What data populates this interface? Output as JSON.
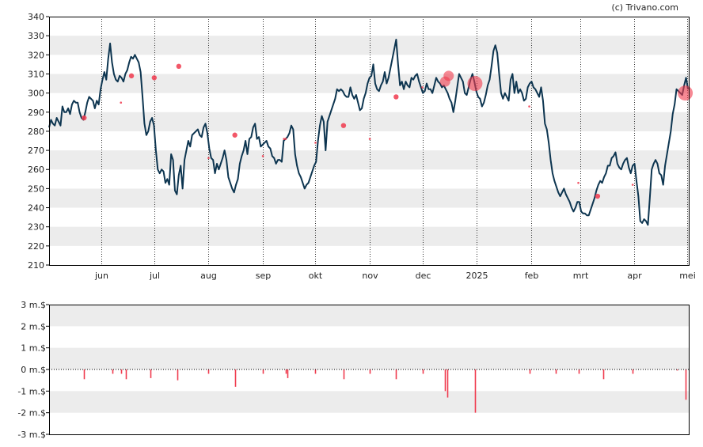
{
  "copyright": "(c) Trivano.com",
  "colors": {
    "band": "#ececec",
    "price_line": "#0d3550",
    "marker": "#f03a4d",
    "axis": "#000000",
    "grid_dots": "#333333"
  },
  "chart_data": [
    {
      "type": "line",
      "title": "",
      "xlabel": "",
      "ylabel": "",
      "ylim": [
        210,
        340
      ],
      "yticks": [
        "210",
        "220",
        "230",
        "240",
        "250",
        "260",
        "270",
        "280",
        "290",
        "300",
        "310",
        "320",
        "330",
        "340"
      ],
      "xticks": [
        "jun",
        "jul",
        "aug",
        "sep",
        "okt",
        "nov",
        "dec",
        "2025",
        "feb",
        "mrt",
        "apr",
        "mei"
      ],
      "grid": "vertical dotted month lines, alternating horizontal bands",
      "series": [
        {
          "values": [
            282,
            286,
            284,
            283,
            287,
            285,
            283,
            293,
            290,
            290,
            292,
            289,
            294,
            296,
            295,
            295,
            290,
            287,
            286,
            290,
            295,
            298,
            297,
            296,
            292,
            296,
            294,
            302,
            307,
            311,
            307,
            318,
            326,
            316,
            310,
            307,
            306,
            309,
            308,
            306,
            310,
            312,
            316,
            319,
            318,
            320,
            318,
            316,
            311,
            298,
            284,
            278,
            280,
            285,
            287,
            283,
            270,
            260,
            258,
            260,
            259,
            253,
            255,
            252,
            268,
            265,
            249,
            247,
            257,
            262,
            250,
            265,
            270,
            275,
            272,
            278,
            279,
            280,
            281,
            278,
            277,
            282,
            284,
            279,
            271,
            266,
            265,
            258,
            263,
            260,
            263,
            266,
            270,
            265,
            256,
            253,
            250,
            248,
            252,
            255,
            263,
            267,
            270,
            275,
            268,
            276,
            277,
            282,
            284,
            276,
            277,
            272,
            273,
            274,
            275,
            272,
            271,
            267,
            266,
            263,
            265,
            265,
            264,
            275,
            276,
            277,
            279,
            283,
            281,
            268,
            262,
            258,
            256,
            253,
            250,
            252,
            253,
            256,
            259,
            262,
            264,
            275,
            283,
            288,
            285,
            270,
            285,
            288,
            291,
            294,
            297,
            302,
            301,
            302,
            301,
            299,
            298,
            298,
            303,
            299,
            297,
            299,
            295,
            291,
            292,
            297,
            300,
            305,
            308,
            309,
            315,
            305,
            302,
            301,
            304,
            306,
            311,
            305,
            308,
            313,
            318,
            323,
            328,
            315,
            304,
            306,
            302,
            306,
            304,
            303,
            308,
            307,
            309,
            310,
            306,
            303,
            300,
            301,
            305,
            302,
            302,
            300,
            304,
            308,
            306,
            305,
            303,
            304,
            302,
            300,
            297,
            295,
            290,
            296,
            303,
            310,
            308,
            306,
            300,
            299,
            303,
            307,
            310,
            306,
            301,
            298,
            297,
            293,
            295,
            299,
            304,
            307,
            314,
            322,
            325,
            321,
            310,
            300,
            297,
            300,
            298,
            296,
            307,
            310,
            300,
            306,
            300,
            302,
            300,
            296,
            297,
            303,
            305,
            306,
            303,
            302,
            300,
            298,
            303,
            296,
            284,
            281,
            274,
            265,
            258,
            254,
            251,
            248,
            246,
            248,
            250,
            247,
            245,
            243,
            240,
            238,
            240,
            243,
            243,
            238,
            237,
            237,
            236,
            236,
            239,
            242,
            245,
            249,
            252,
            254,
            253,
            256,
            258,
            262,
            262,
            266,
            267,
            269,
            263,
            261,
            260,
            263,
            265,
            266,
            261,
            258,
            262,
            263,
            254,
            246,
            233,
            232,
            234,
            233,
            231,
            245,
            260,
            263,
            265,
            263,
            258,
            257,
            252,
            262,
            268,
            274,
            280,
            289,
            294,
            302,
            301,
            300,
            299,
            304,
            308,
            302
          ]
        }
      ],
      "markers": [
        {
          "date": "2024-05-22",
          "price": 287,
          "size": "small"
        },
        {
          "date": "2024-06-12",
          "price": 295,
          "size": "tiny"
        },
        {
          "date": "2024-06-18",
          "price": 309,
          "size": "small"
        },
        {
          "date": "2024-07-01",
          "price": 308,
          "size": "small"
        },
        {
          "date": "2024-07-15",
          "price": 314,
          "size": "small"
        },
        {
          "date": "2024-08-01",
          "price": 266,
          "size": "tiny"
        },
        {
          "date": "2024-08-16",
          "price": 278,
          "size": "small"
        },
        {
          "date": "2024-09-01",
          "price": 267,
          "size": "tiny"
        },
        {
          "date": "2024-09-13",
          "price": 276,
          "size": "tiny"
        },
        {
          "date": "2024-09-14",
          "price": 276,
          "size": "tiny"
        },
        {
          "date": "2024-10-01",
          "price": 274,
          "size": "tiny"
        },
        {
          "date": "2024-10-17",
          "price": 283,
          "size": "small"
        },
        {
          "date": "2024-11-01",
          "price": 276,
          "size": "tiny"
        },
        {
          "date": "2024-11-16",
          "price": 298,
          "size": "small"
        },
        {
          "date": "2024-12-01",
          "price": 303,
          "size": "tiny"
        },
        {
          "date": "2024-12-14",
          "price": 306,
          "size": "medium"
        },
        {
          "date": "2024-12-16",
          "price": 309,
          "size": "medium"
        },
        {
          "date": "2024-12-31",
          "price": 305,
          "size": "large"
        },
        {
          "date": "2025-01-31",
          "price": 293,
          "size": "tiny"
        },
        {
          "date": "2025-02-28",
          "price": 253,
          "size": "tiny"
        },
        {
          "date": "2025-03-11",
          "price": 246,
          "size": "small"
        },
        {
          "date": "2025-03-31",
          "price": 252,
          "size": "tiny"
        },
        {
          "date": "2025-04-30",
          "price": 300,
          "size": "large"
        }
      ]
    },
    {
      "type": "bar",
      "title": "",
      "xlabel": "",
      "ylabel": "",
      "ylim": [
        -3,
        3
      ],
      "yticks": [
        "3 m.$",
        "2 m.$",
        "1 m.$",
        "0 m.$",
        "-1 m.$",
        "-2 m.$",
        "-3 m.$"
      ],
      "series": [
        {
          "points": [
            {
              "date": "2024-05-22",
              "value": -0.45
            },
            {
              "date": "2024-06-07",
              "value": -0.2
            },
            {
              "date": "2024-06-12",
              "value": -0.2
            },
            {
              "date": "2024-06-15",
              "value": -0.45
            },
            {
              "date": "2024-06-29",
              "value": -0.4
            },
            {
              "date": "2024-07-14",
              "value": -0.5
            },
            {
              "date": "2024-08-01",
              "value": -0.2
            },
            {
              "date": "2024-08-16",
              "value": -0.8
            },
            {
              "date": "2024-09-01",
              "value": -0.2
            },
            {
              "date": "2024-09-14",
              "value": -0.2
            },
            {
              "date": "2024-09-15",
              "value": -0.4
            },
            {
              "date": "2024-10-01",
              "value": -0.2
            },
            {
              "date": "2024-10-17",
              "value": -0.45
            },
            {
              "date": "2024-11-01",
              "value": -0.2
            },
            {
              "date": "2024-11-16",
              "value": -0.45
            },
            {
              "date": "2024-12-01",
              "value": -0.2
            },
            {
              "date": "2024-12-14",
              "value": -1.0
            },
            {
              "date": "2024-12-15",
              "value": -1.3
            },
            {
              "date": "2024-12-31",
              "value": -2.0
            },
            {
              "date": "2025-01-31",
              "value": -0.2
            },
            {
              "date": "2025-02-15",
              "value": -0.2
            },
            {
              "date": "2025-02-28",
              "value": -0.2
            },
            {
              "date": "2025-03-14",
              "value": -0.45
            },
            {
              "date": "2025-03-31",
              "value": -0.2
            },
            {
              "date": "2025-04-25",
              "value": -0.05
            },
            {
              "date": "2025-04-30",
              "value": -1.4
            }
          ]
        }
      ]
    }
  ]
}
